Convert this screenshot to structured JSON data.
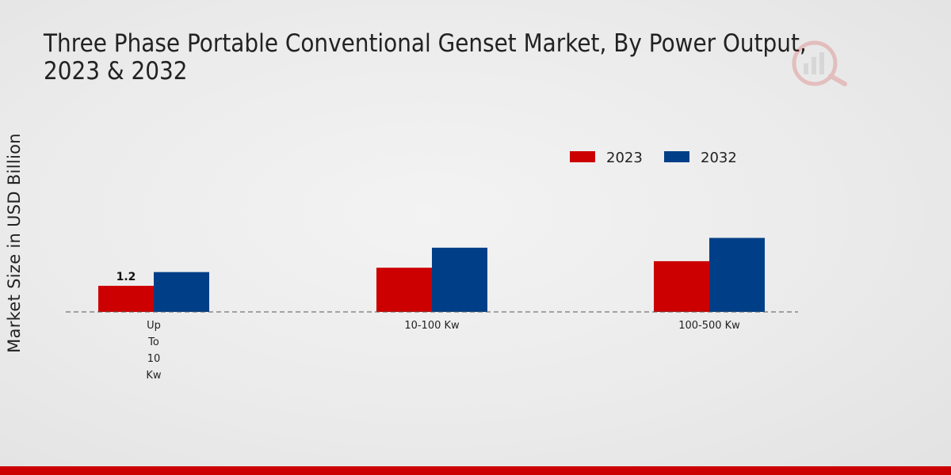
{
  "chart_data": {
    "type": "bar",
    "title": "Three Phase Portable Conventional Genset Market, By Power Output, 2023 & 2032",
    "xlabel": "",
    "ylabel": "Market Size in USD Billion",
    "categories": [
      "Up To 10 Kw",
      "10-100 Kw",
      "100-500 Kw"
    ],
    "category_lines": [
      [
        "Up",
        "To",
        "10",
        "Kw"
      ],
      [
        "10-100 Kw"
      ],
      [
        "100-500 Kw"
      ]
    ],
    "series": [
      {
        "name": "2023",
        "color": "#cc0000",
        "values": [
          1.2,
          2.03,
          2.33
        ]
      },
      {
        "name": "2032",
        "color": "#003f87",
        "values": [
          1.83,
          2.95,
          3.4
        ]
      }
    ],
    "data_labels": [
      {
        "series": 0,
        "index": 0,
        "text": "1.2"
      }
    ],
    "ylim": [
      0,
      10
    ],
    "grid": false,
    "legend_position": "top-right"
  },
  "colors": {
    "accent": "#cc0000",
    "secondary": "#003f87"
  }
}
